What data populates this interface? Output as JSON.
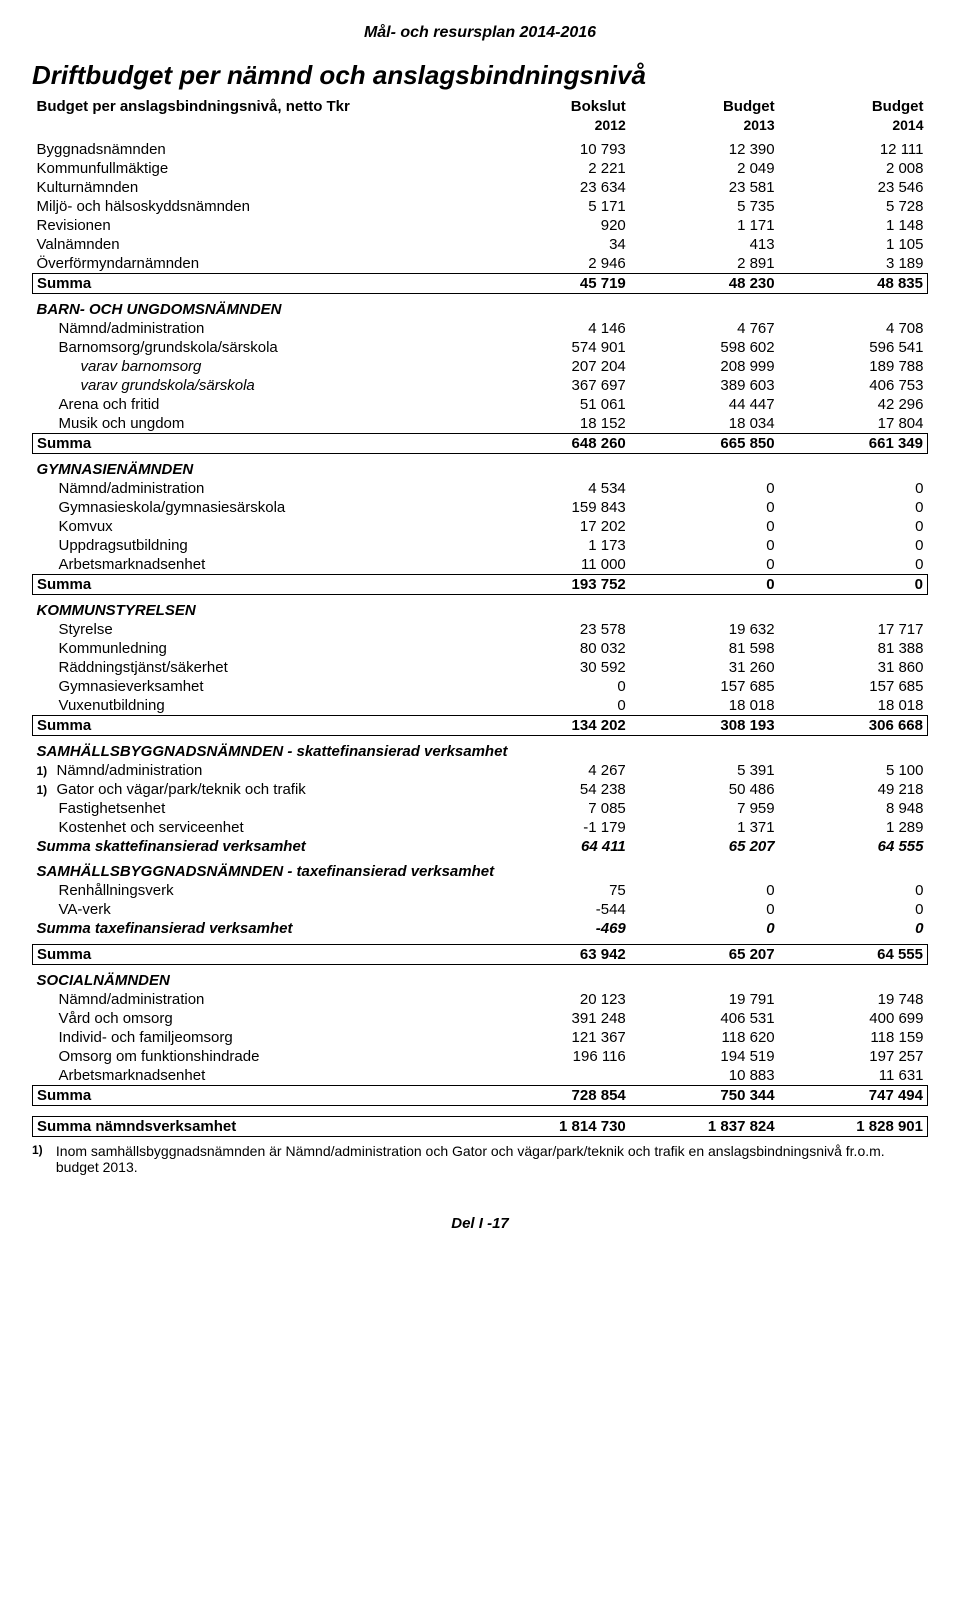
{
  "doc_header": "Mål- och resursplan 2014-2016",
  "title": "Driftbudget per nämnd och anslagsbindningsnivå",
  "subtitle": "Budget per anslagsbindningsnivå, netto Tkr",
  "col_headers": {
    "c1a": "Bokslut",
    "c2a": "Budget",
    "c3a": "Budget",
    "c1b": "2012",
    "c2b": "2013",
    "c3b": "2014"
  },
  "top_rows": [
    {
      "label": "Byggnadsnämnden",
      "v": [
        "10 793",
        "12 390",
        "12 111"
      ]
    },
    {
      "label": "Kommunfullmäktige",
      "v": [
        "2 221",
        "2 049",
        "2 008"
      ]
    },
    {
      "label": "Kulturnämnden",
      "v": [
        "23 634",
        "23 581",
        "23 546"
      ]
    },
    {
      "label": "Miljö- och hälsoskyddsnämnden",
      "v": [
        "5 171",
        "5 735",
        "5 728"
      ]
    },
    {
      "label": "Revisionen",
      "v": [
        "920",
        "1 171",
        "1 148"
      ]
    },
    {
      "label": "Valnämnden",
      "v": [
        "34",
        "413",
        "1 105"
      ]
    },
    {
      "label": "Överförmyndarnämnden",
      "v": [
        "2 946",
        "2 891",
        "3 189"
      ]
    }
  ],
  "top_sum": {
    "label": "Summa",
    "v": [
      "45 719",
      "48 230",
      "48 835"
    ]
  },
  "barn": {
    "header": "BARN- OCH UNGDOMSNÄMNDEN",
    "rows": [
      {
        "label": "Nämnd/administration",
        "indent": 1,
        "v": [
          "4 146",
          "4 767",
          "4 708"
        ]
      },
      {
        "label": "Barnomsorg/grundskola/särskola",
        "indent": 1,
        "v": [
          "574 901",
          "598 602",
          "596 541"
        ]
      },
      {
        "label": "varav barnomsorg",
        "indent": 2,
        "italic": true,
        "v": [
          "207 204",
          "208 999",
          "189 788"
        ]
      },
      {
        "label": "varav grundskola/särskola",
        "indent": 2,
        "italic": true,
        "v": [
          "367 697",
          "389 603",
          "406 753"
        ]
      },
      {
        "label": "Arena och fritid",
        "indent": 1,
        "v": [
          "51 061",
          "44 447",
          "42 296"
        ]
      },
      {
        "label": "Musik och ungdom",
        "indent": 1,
        "v": [
          "18 152",
          "18 034",
          "17 804"
        ]
      }
    ],
    "sum": {
      "label": "Summa",
      "v": [
        "648 260",
        "665 850",
        "661 349"
      ]
    }
  },
  "gym": {
    "header": "GYMNASIENÄMNDEN",
    "rows": [
      {
        "label": "Nämnd/administration",
        "indent": 1,
        "v": [
          "4 534",
          "0",
          "0"
        ]
      },
      {
        "label": "Gymnasieskola/gymnasiesärskola",
        "indent": 1,
        "v": [
          "159 843",
          "0",
          "0"
        ]
      },
      {
        "label": "Komvux",
        "indent": 1,
        "v": [
          "17 202",
          "0",
          "0"
        ]
      },
      {
        "label": "Uppdragsutbildning",
        "indent": 1,
        "v": [
          "1 173",
          "0",
          "0"
        ]
      },
      {
        "label": "Arbetsmarknadsenhet",
        "indent": 1,
        "v": [
          "11 000",
          "0",
          "0"
        ]
      }
    ],
    "sum": {
      "label": "Summa",
      "v": [
        "193 752",
        "0",
        "0"
      ]
    }
  },
  "ks": {
    "header": "KOMMUNSTYRELSEN",
    "rows": [
      {
        "label": "Styrelse",
        "indent": 1,
        "v": [
          "23 578",
          "19 632",
          "17 717"
        ]
      },
      {
        "label": "Kommunledning",
        "indent": 1,
        "v": [
          "80 032",
          "81 598",
          "81 388"
        ]
      },
      {
        "label": "Räddningstjänst/säkerhet",
        "indent": 1,
        "v": [
          "30 592",
          "31 260",
          "31 860"
        ]
      },
      {
        "label": "Gymnasieverksamhet",
        "indent": 1,
        "v": [
          "0",
          "157 685",
          "157 685"
        ]
      },
      {
        "label": "Vuxenutbildning",
        "indent": 1,
        "v": [
          "0",
          "18 018",
          "18 018"
        ]
      }
    ],
    "sum": {
      "label": "Summa",
      "v": [
        "134 202",
        "308 193",
        "306 668"
      ]
    }
  },
  "sbn_sk": {
    "header": "SAMHÄLLSBYGGNADSNÄMNDEN - skattefinansierad verksamhet",
    "rows": [
      {
        "note": "1)",
        "label": "Nämnd/administration",
        "indent": 0,
        "v": [
          "4 267",
          "5 391",
          "5 100"
        ]
      },
      {
        "note": "1)",
        "label": "Gator och vägar/park/teknik och trafik",
        "indent": 0,
        "v": [
          "54 238",
          "50 486",
          "49 218"
        ]
      },
      {
        "label": "Fastighetsenhet",
        "indent": 1,
        "v": [
          "7 085",
          "7 959",
          "8 948"
        ]
      },
      {
        "label": "Kostenhet och serviceenhet",
        "indent": 1,
        "v": [
          "-1 179",
          "1 371",
          "1 289"
        ]
      }
    ],
    "sum": {
      "label": "Summa skattefinansierad verksamhet",
      "v": [
        "64 411",
        "65 207",
        "64 555"
      ]
    }
  },
  "sbn_tax": {
    "header": "SAMHÄLLSBYGGNADSNÄMNDEN - taxefinansierad verksamhet",
    "rows": [
      {
        "label": "Renhållningsverk",
        "indent": 1,
        "v": [
          "75",
          "0",
          "0"
        ]
      },
      {
        "label": "VA-verk",
        "indent": 1,
        "v": [
          "-544",
          "0",
          "0"
        ]
      }
    ],
    "sum": {
      "label": "Summa taxefinansierad verksamhet",
      "v": [
        "-469",
        "0",
        "0"
      ]
    }
  },
  "sbn_total": {
    "label": "Summa",
    "v": [
      "63 942",
      "65 207",
      "64 555"
    ]
  },
  "soc": {
    "header": "SOCIALNÄMNDEN",
    "rows": [
      {
        "label": "Nämnd/administration",
        "indent": 1,
        "v": [
          "20 123",
          "19 791",
          "19 748"
        ]
      },
      {
        "label": "Vård och omsorg",
        "indent": 1,
        "v": [
          "391 248",
          "406 531",
          "400 699"
        ]
      },
      {
        "label": "Individ- och familjeomsorg",
        "indent": 1,
        "v": [
          "121 367",
          "118 620",
          "118 159"
        ]
      },
      {
        "label": "Omsorg om funktionshindrade",
        "indent": 1,
        "v": [
          "196 116",
          "194 519",
          "197 257"
        ]
      },
      {
        "label": "Arbetsmarknadsenhet",
        "indent": 1,
        "v": [
          "",
          "10 883",
          "11 631"
        ]
      }
    ],
    "sum": {
      "label": "Summa",
      "v": [
        "728 854",
        "750 344",
        "747 494"
      ]
    }
  },
  "grand": {
    "label": "Summa nämndsverksamhet",
    "v": [
      "1 814 730",
      "1 837 824",
      "1 828 901"
    ]
  },
  "footnote": {
    "mark": "1)",
    "text": "Inom samhällsbyggnadsnämnden är Nämnd/administration och Gator och vägar/park/teknik och trafik en anslagsbindningsnivå fr.o.m. budget 2013."
  },
  "footer": "Del I -17"
}
